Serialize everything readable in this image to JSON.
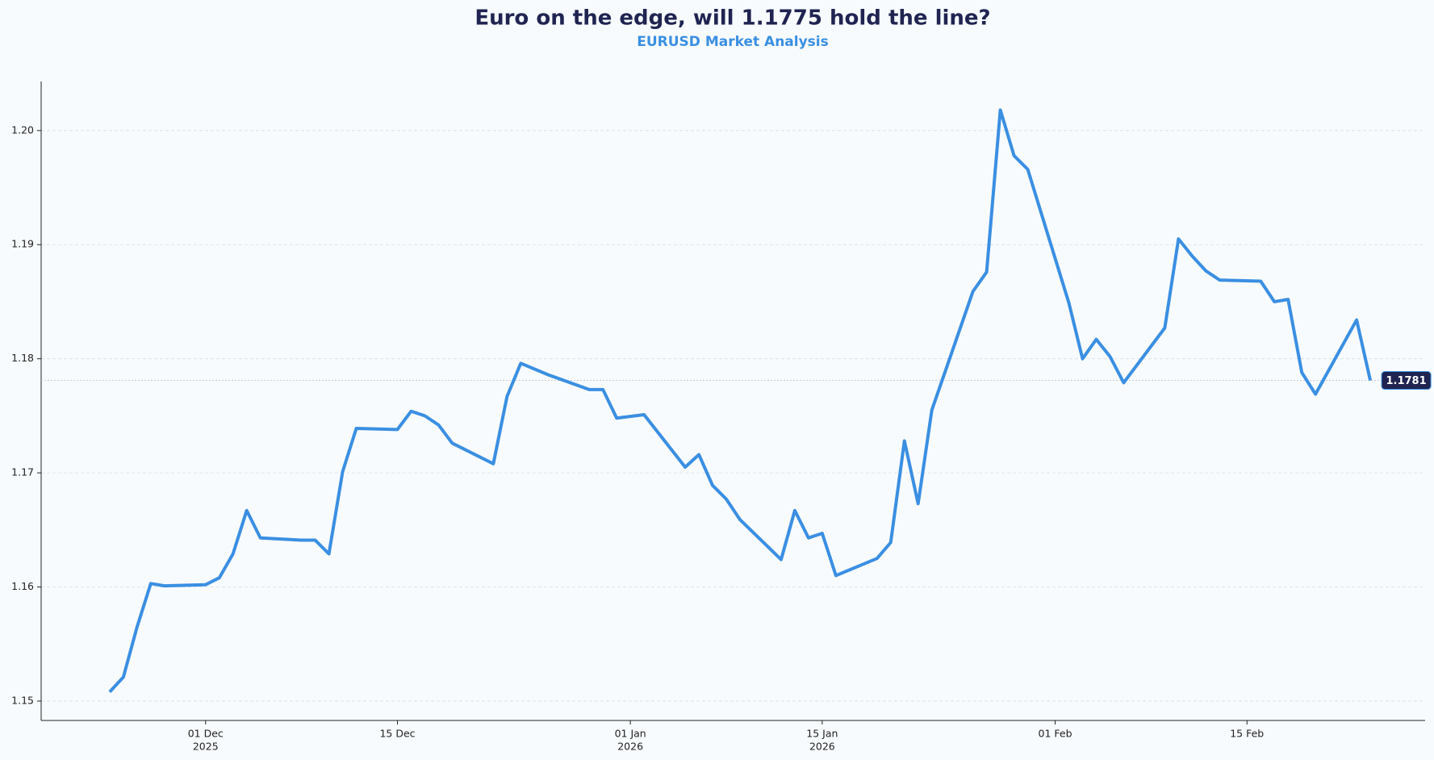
{
  "chart_data": {
    "type": "line",
    "title": "Euro on the edge, will 1.1775 hold the line?",
    "subtitle": "EURUSD Market Analysis",
    "x": [
      "2025-11-24",
      "2025-11-25",
      "2025-11-26",
      "2025-11-27",
      "2025-11-28",
      "2025-12-01",
      "2025-12-02",
      "2025-12-03",
      "2025-12-04",
      "2025-12-05",
      "2025-12-08",
      "2025-12-09",
      "2025-12-10",
      "2025-12-11",
      "2025-12-12",
      "2025-12-15",
      "2025-12-16",
      "2025-12-17",
      "2025-12-18",
      "2025-12-19",
      "2025-12-22",
      "2025-12-23",
      "2025-12-24",
      "2025-12-26",
      "2025-12-29",
      "2025-12-30",
      "2025-12-31",
      "2026-01-02",
      "2026-01-05",
      "2026-01-06",
      "2026-01-07",
      "2026-01-08",
      "2026-01-09",
      "2026-01-12",
      "2026-01-13",
      "2026-01-14",
      "2026-01-15",
      "2026-01-16",
      "2026-01-19",
      "2026-01-20",
      "2026-01-21",
      "2026-01-22",
      "2026-01-23",
      "2026-01-26",
      "2026-01-27",
      "2026-01-28",
      "2026-01-29",
      "2026-01-30",
      "2026-02-02",
      "2026-02-03",
      "2026-02-04",
      "2026-02-05",
      "2026-02-06",
      "2026-02-09",
      "2026-02-10",
      "2026-02-11",
      "2026-02-12",
      "2026-02-13",
      "2026-02-16",
      "2026-02-17",
      "2026-02-18",
      "2026-02-19",
      "2026-02-20",
      "2026-02-23",
      "2026-02-24"
    ],
    "series": [
      {
        "name": "EURUSD",
        "color": "#3a8fe2",
        "values": [
          1.1508,
          1.1521,
          1.1565,
          1.1603,
          1.1601,
          1.1602,
          1.1608,
          1.1629,
          1.1667,
          1.1643,
          1.1641,
          1.1641,
          1.1629,
          1.1701,
          1.1739,
          1.1738,
          1.1754,
          1.175,
          1.1742,
          1.1726,
          1.1708,
          1.1767,
          1.1796,
          1.1786,
          1.1773,
          1.1773,
          1.1748,
          1.1751,
          1.1705,
          1.1716,
          1.1689,
          1.1677,
          1.1659,
          1.1624,
          1.1667,
          1.1643,
          1.1647,
          1.161,
          1.1625,
          1.1639,
          1.1728,
          1.1673,
          1.1755,
          1.1859,
          1.1876,
          1.2018,
          1.1978,
          1.1966,
          1.1849,
          1.18,
          1.1817,
          1.1802,
          1.1779,
          1.1827,
          1.1905,
          1.189,
          1.1877,
          1.1869,
          1.1868,
          1.185,
          1.1852,
          1.1788,
          1.1769,
          1.1834,
          1.1781
        ]
      }
    ],
    "reference_line": {
      "value": 1.1781,
      "label": "1.1781"
    },
    "xlim": [
      "2025-11-19",
      "2026-02-28"
    ],
    "xticks": [
      {
        "value": "2025-12-01",
        "label": [
          "01 Dec",
          "2025"
        ]
      },
      {
        "value": "2025-12-15",
        "label": [
          "15 Dec"
        ]
      },
      {
        "value": "2026-01-01",
        "label": [
          "01 Jan",
          "2026"
        ]
      },
      {
        "value": "2026-01-15",
        "label": [
          "15 Jan",
          "2026"
        ]
      },
      {
        "value": "2026-02-01",
        "label": [
          "01 Feb"
        ]
      },
      {
        "value": "2026-02-15",
        "label": [
          "15 Feb"
        ]
      }
    ],
    "ylim": [
      1.1483,
      1.2043
    ],
    "yticks": [
      1.15,
      1.16,
      1.17,
      1.18,
      1.19,
      {
        "value": 1.2,
        "label": "1.20"
      }
    ],
    "grid": true
  }
}
